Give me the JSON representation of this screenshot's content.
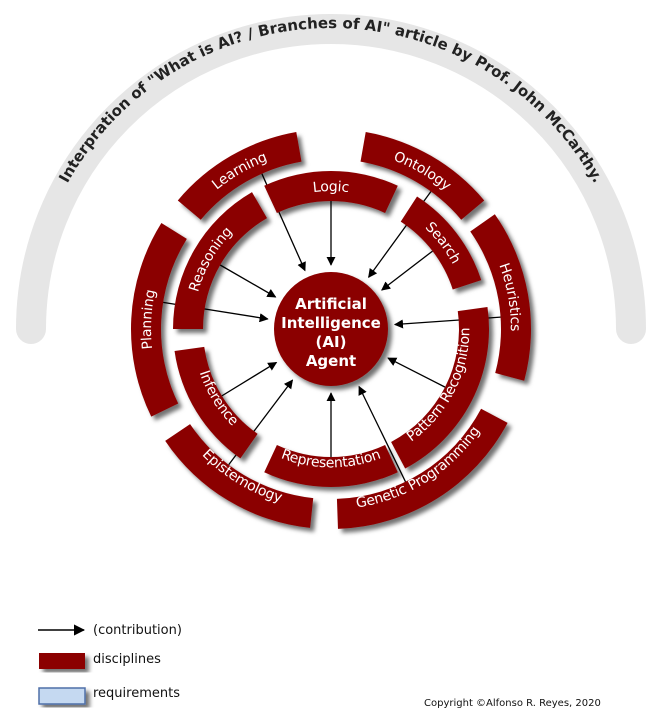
{
  "title": "Interpration of \"What is AI? / Branches of AI\" article by Prof. John McCarthy.",
  "center": {
    "lines": [
      "Artificial",
      "Intelligence",
      "(AI)",
      "Agent"
    ]
  },
  "colors": {
    "discipline_fill": "#8b0000",
    "requirement_fill": "#c5d9f1",
    "requirement_stroke": "#4f6fa8",
    "title_arc": "#e6e6e6",
    "arrow": "#000000"
  },
  "inner_ring": [
    {
      "label": "Logic"
    },
    {
      "label": "Search"
    },
    {
      "label": "Pattern Recognition"
    },
    {
      "label": "Representation"
    },
    {
      "label": "Inference"
    },
    {
      "label": "Reasoning"
    }
  ],
  "outer_ring": [
    {
      "label": "Ontology"
    },
    {
      "label": "Heuristics"
    },
    {
      "label": "Genetic Programming"
    },
    {
      "label": "Epistemology"
    },
    {
      "label": "Planning"
    },
    {
      "label": "Learning"
    }
  ],
  "legend": {
    "contribution": "(contribution)",
    "disciplines": "disciplines",
    "requirements": "requirements"
  },
  "copyright": "Copyright ©Alfonso R. Reyes, 2020"
}
